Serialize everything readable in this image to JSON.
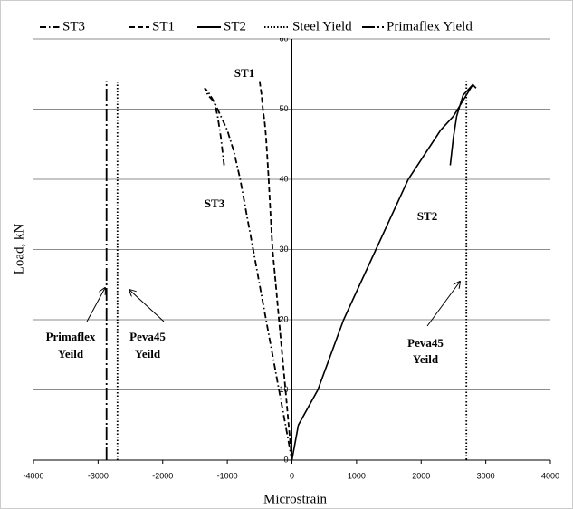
{
  "chart_data": {
    "type": "line",
    "x_label": "Microstrain",
    "y_label": "Load, kN",
    "xlim": [
      -4000,
      4000
    ],
    "xticks": [
      -4000,
      -3000,
      -2000,
      -1000,
      0,
      1000,
      2000,
      3000,
      4000
    ],
    "ylim": [
      0,
      60
    ],
    "yticks": [
      0,
      10,
      20,
      30,
      40,
      50,
      60
    ],
    "grid": true,
    "legend": "top",
    "series": [
      {
        "name": "ST3",
        "color": "#000000",
        "dash": "dash-dot",
        "x": [
          0,
          -100,
          -200,
          -300,
          -400,
          -500,
          -600,
          -700,
          -800,
          -900,
          -1000,
          -1100,
          -1200,
          -1300,
          -1350,
          -1300,
          -1200,
          -1150,
          -1100,
          -1050
        ],
        "values": [
          0,
          5,
          10,
          15,
          20,
          25,
          30,
          35,
          40,
          44,
          47,
          49,
          51,
          52.5,
          53,
          52,
          51,
          49,
          46,
          42
        ]
      },
      {
        "name": "ST1",
        "color": "#000000",
        "dash": "dashed",
        "x": [
          0,
          -50,
          -100,
          -150,
          -200,
          -250,
          -300,
          -330,
          -360,
          -380,
          -400,
          -420,
          -450,
          -470,
          -500
        ],
        "values": [
          0,
          5,
          10,
          15,
          20,
          25,
          30,
          35,
          40,
          43,
          46,
          48,
          50,
          52,
          54
        ]
      },
      {
        "name": "ST2",
        "color": "#000000",
        "dash": "solid",
        "x": [
          0,
          100,
          400,
          800,
          1300,
          1800,
          2300,
          2500,
          2700,
          2800,
          2850,
          2800,
          2750,
          2650,
          2550,
          2500,
          2450
        ],
        "values": [
          0,
          5,
          10,
          20,
          30,
          40,
          47,
          49,
          52,
          53.5,
          53,
          53.5,
          53,
          52,
          49,
          46,
          42
        ]
      },
      {
        "name": "Steel Yield",
        "color": "#000000",
        "dash": "dotted",
        "x": [
          -2700,
          -2700,
          null,
          2700,
          2700
        ],
        "values": [
          0,
          54,
          null,
          54,
          0
        ]
      },
      {
        "name": "Primaflex Yield",
        "color": "#000000",
        "dash": "long-dash-dot",
        "x": [
          -2870,
          -2870
        ],
        "values": [
          0,
          54
        ]
      }
    ],
    "annotations": [
      "ST1",
      "ST3",
      "ST2",
      "Primaflex",
      "Yeild",
      "Peva45",
      "Yeild",
      "Peva45",
      "Yeild"
    ]
  }
}
